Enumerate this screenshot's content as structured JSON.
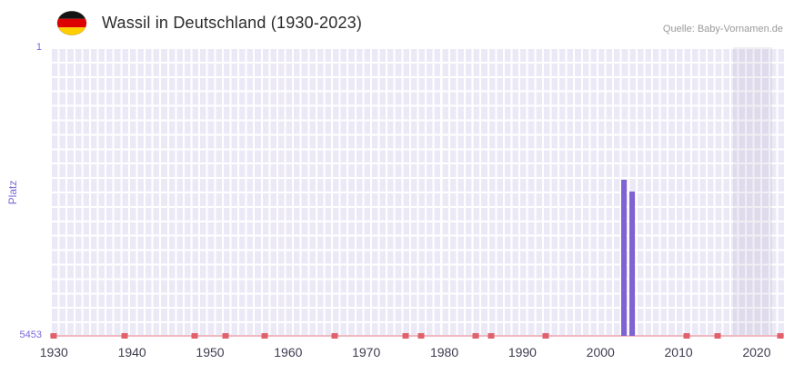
{
  "header": {
    "title": "Wassil in Deutschland (1930-2023)",
    "source": "Quelle: Baby-Vornamen.de"
  },
  "chart_data": {
    "type": "bar",
    "title": "Wassil in Deutschland (1930-2023)",
    "source": "Quelle: Baby-Vornamen.de",
    "xlabel": "",
    "ylabel": "Platz",
    "y_axis": {
      "min": 1,
      "max": 5453,
      "inverted": true,
      "top_tick_label": "1",
      "bottom_tick_label": "5453"
    },
    "x_axis": {
      "min": 1929.5,
      "max": 2023.5,
      "ticks": [
        "1930",
        "1940",
        "1950",
        "1960",
        "1970",
        "1980",
        "1990",
        "2000",
        "2010",
        "2020"
      ]
    },
    "series": [
      {
        "name": "Platz",
        "points": [
          {
            "year": 2003,
            "rank": 2500
          },
          {
            "year": 2004,
            "rank": 2720
          }
        ]
      }
    ],
    "unranked_mark_years": [
      1930,
      1939,
      1948,
      1952,
      1957,
      1966,
      1975,
      1977,
      1984,
      1986,
      1993,
      2011,
      2015,
      2023
    ],
    "highlight_band": {
      "from_year": 2017,
      "to_year": 2022
    },
    "legend": "none",
    "grid": "on",
    "colors": {
      "bar": "#7f63d2",
      "plot_background": "#ece9f7",
      "grid_line": "#ffffff",
      "highlight_band": "#e2dfef",
      "baseline": "#f0b9c2",
      "unranked_mark": "#e0616b",
      "y_label": "#7b68d8",
      "x_label": "#3d3d52",
      "title": "#2b2b2b",
      "source": "#9a9a9a",
      "flag_black": "#141414",
      "flag_red": "#dd0000",
      "flag_gold": "#ffce00"
    }
  }
}
